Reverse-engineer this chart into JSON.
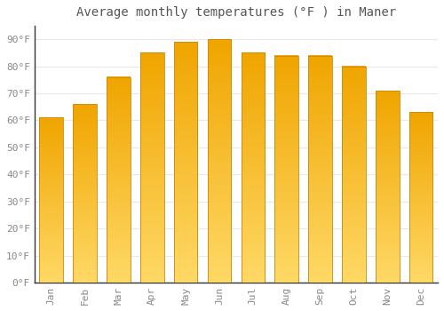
{
  "title": "Average monthly temperatures (°F ) in Maner",
  "months": [
    "Jan",
    "Feb",
    "Mar",
    "Apr",
    "May",
    "Jun",
    "Jul",
    "Aug",
    "Sep",
    "Oct",
    "Nov",
    "Dec"
  ],
  "values": [
    61,
    66,
    76,
    85,
    89,
    90,
    85,
    84,
    84,
    80,
    71,
    63
  ],
  "ylim": [
    0,
    95
  ],
  "yticks": [
    0,
    10,
    20,
    30,
    40,
    50,
    60,
    70,
    80,
    90
  ],
  "ytick_labels": [
    "0°F",
    "10°F",
    "20°F",
    "30°F",
    "40°F",
    "50°F",
    "60°F",
    "70°F",
    "80°F",
    "90°F"
  ],
  "background_color": "#FFFFFF",
  "grid_color": "#E8E8E8",
  "title_fontsize": 10,
  "tick_fontsize": 8,
  "font_color": "#888888",
  "bar_color_bottom": "#FFD966",
  "bar_color_top": "#F0A500",
  "bar_edge_color": "#C8880A",
  "bar_width": 0.7
}
